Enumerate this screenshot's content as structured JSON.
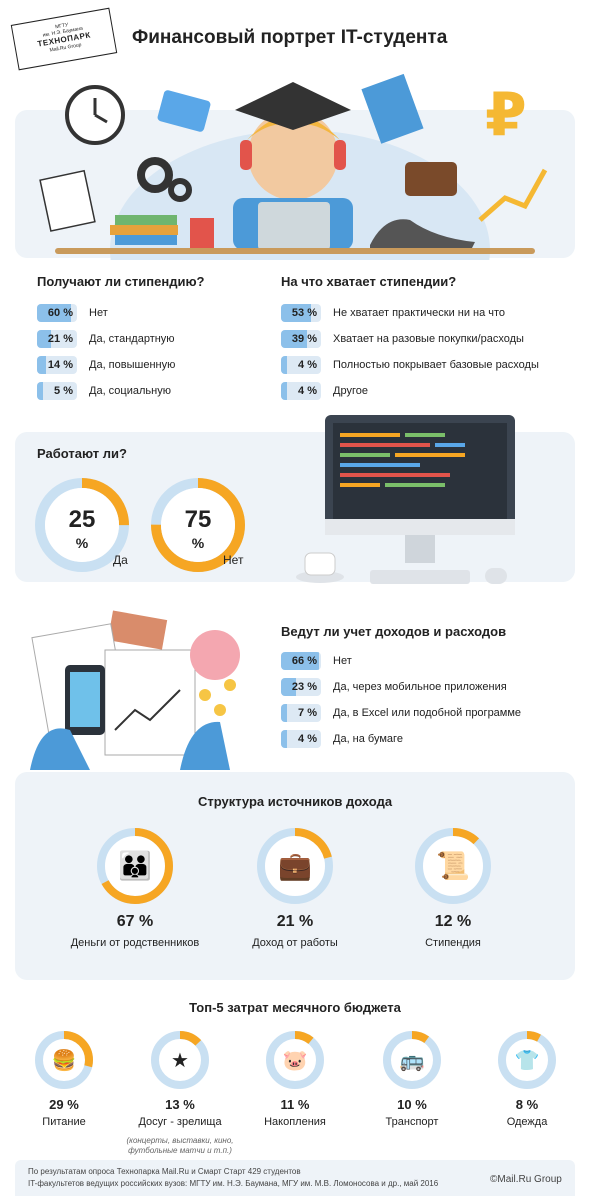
{
  "logo": {
    "line1": "МГТУ",
    "line2": "им. Н.Э. Баумана",
    "name": "ТЕХНОПАРК",
    "line3": "Mail.Ru Group"
  },
  "title": "Финансовый портрет IT-студента",
  "scholarship": {
    "title": "Получают ли стипендию?",
    "rows": [
      {
        "pct": "60 %",
        "value": 60,
        "label": "Нет"
      },
      {
        "pct": "21 %",
        "value": 21,
        "label": "Да, стандартную"
      },
      {
        "pct": "14 %",
        "value": 14,
        "label": "Да, повышенную"
      },
      {
        "pct": "5 %",
        "value": 5,
        "label": "Да, социальную"
      }
    ]
  },
  "enough": {
    "title": "На что хватает стипендии?",
    "rows": [
      {
        "pct": "53 %",
        "value": 53,
        "label": "Не хватает практически ни на что"
      },
      {
        "pct": "39 %",
        "value": 39,
        "label": "Хватает на разовые покупки/расходы"
      },
      {
        "pct": "4 %",
        "value": 4,
        "label": "Полностью покрывает базовые расходы"
      },
      {
        "pct": "4 %",
        "value": 4,
        "label": "Другое"
      }
    ]
  },
  "work": {
    "title": "Работают ли?",
    "yes": {
      "num": "25",
      "unit": "%",
      "label": "Да",
      "value": 25
    },
    "no": {
      "num": "75",
      "unit": "%",
      "label": "Нет",
      "value": 75
    }
  },
  "accounting": {
    "title": "Ведут ли учет доходов и расходов",
    "rows": [
      {
        "pct": "66 %",
        "value": 66,
        "label": "Нет"
      },
      {
        "pct": "23 %",
        "value": 23,
        "label": "Да, через мобильное приложения"
      },
      {
        "pct": "7 %",
        "value": 7,
        "label": "Да, в Excel или подобной программе"
      },
      {
        "pct": "4 %",
        "value": 4,
        "label": "Да, на бумаге"
      }
    ]
  },
  "income": {
    "title": "Структура источников дохода",
    "items": [
      {
        "pct": "67 %",
        "value": 67,
        "label": "Деньги от родственников",
        "icon": "parents-icon"
      },
      {
        "pct": "21 %",
        "value": 21,
        "label": "Доход от работы",
        "icon": "briefcase-icon"
      },
      {
        "pct": "12 %",
        "value": 12,
        "label": "Стипендия",
        "icon": "certificate-icon"
      }
    ]
  },
  "expenses": {
    "title": "Топ-5 затрат месячного бюджета",
    "items": [
      {
        "pct": "29 %",
        "value": 29,
        "label": "Питание",
        "icon": "burger-icon"
      },
      {
        "pct": "13 %",
        "value": 13,
        "label": "Досуг - зрелища",
        "icon": "star-icon"
      },
      {
        "pct": "11 %",
        "value": 11,
        "label": "Накопления",
        "icon": "piggy-bank-icon"
      },
      {
        "pct": "10 %",
        "value": 10,
        "label": "Транспорт",
        "icon": "bus-icon"
      },
      {
        "pct": "8 %",
        "value": 8,
        "label": "Одежда",
        "icon": "shirt-icon"
      }
    ],
    "note": "(концерты, выставки, кино, футбольные матчи и т.п.)"
  },
  "footer": {
    "source1": "По результатам опроса Технопарка Mail.Ru и Смарт Старт 429 студентов",
    "source2": "IT-факультетов ведущих российских вузов: МГТУ им. Н.Э. Баумана, МГУ им. М.В. Ломоносова  и др., май 2016",
    "copyright": "©Mail.Ru Group"
  },
  "colors": {
    "blue": "#8cc0ea",
    "light": "#dde9f4",
    "orange": "#f6a623",
    "panel": "#eef3f8"
  }
}
